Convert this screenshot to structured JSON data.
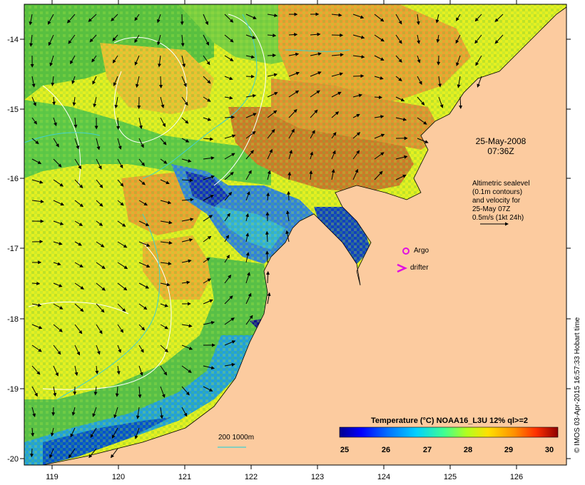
{
  "map": {
    "x_ticks": [
      "119",
      "120",
      "121",
      "122",
      "123",
      "124",
      "125",
      "126"
    ],
    "y_ticks": [
      "-14",
      "-15",
      "-16",
      "-17",
      "-18",
      "-19",
      "-20"
    ],
    "date_line1": "25-May-2008",
    "date_line2": "07:36Z",
    "info_lines": [
      "Altimetric sealevel",
      "(0.1m contours)",
      "and velocity for",
      "25-May 07Z",
      "0.5m/s (1kt 24h)"
    ],
    "argo_label": "Argo",
    "drifter_label": "drifter",
    "bathymetry_label": "200  1000m",
    "colorbar_title": "Temperature (°C) NOAA16_L3U 12% ql>=2",
    "colorbar_ticks": [
      "25",
      "26",
      "27",
      "28",
      "29",
      "30"
    ],
    "credit": "© IMOS 03-Apr-2015 16:57:33 Hobart time",
    "colors": {
      "land": "#FCCB9F",
      "argo": "#E010E0",
      "drifter": "#E010E0",
      "isobath": "#40D0D0",
      "sealevel_contour": "#FFFFFF",
      "colorbar": [
        "#00008F",
        "#0000FF",
        "#0070FF",
        "#00D0FF",
        "#40FF90",
        "#B0FF20",
        "#FFE000",
        "#FF9000",
        "#FF3000",
        "#8F0000"
      ]
    },
    "icons": [
      "argo-float-icon",
      "drifter-icon",
      "velocity-arrow-icon"
    ]
  }
}
